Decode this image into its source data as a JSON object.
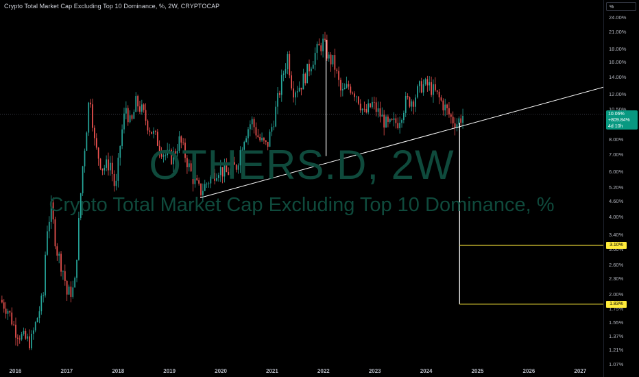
{
  "header": {
    "title": "Crypto Total Market Cap Excluding Top 10 Dominance, %, 2W, CRYPTOCAP"
  },
  "watermark": {
    "symbol": "OTHERS.D, 2W",
    "description": "Crypto Total Market Cap Excluding Top 10 Dominance, %"
  },
  "price_scale": {
    "mode_label": "%",
    "badge": {
      "value": "10.06%",
      "change": "+809.84%",
      "countdown": "4d 10h"
    },
    "target_labels": [
      {
        "label": "3.10%",
        "value": 3.1
      },
      {
        "label": "1.83%",
        "value": 1.83
      }
    ]
  },
  "colors": {
    "up": "#26a69a",
    "down": "#ef5350",
    "trendline": "#ffffff",
    "projection": "#ffffff",
    "target": "#ffeb3b",
    "watermark": "#0f4a3c"
  },
  "chart_data": {
    "type": "candlestick",
    "title": "Crypto Total Market Cap Excluding Top 10 Dominance, %, 2W, CRYPTOCAP",
    "y_scale": "log",
    "ylim": [
      1.07,
      24.0
    ],
    "xlim": [
      2015.7,
      2027.45
    ],
    "y_ticks": [
      {
        "label": "24.00%",
        "value": 24.0
      },
      {
        "label": "21.00%",
        "value": 21.0
      },
      {
        "label": "18.00%",
        "value": 18.0
      },
      {
        "label": "16.00%",
        "value": 16.0
      },
      {
        "label": "14.00%",
        "value": 14.0
      },
      {
        "label": "12.00%",
        "value": 12.0
      },
      {
        "label": "10.50%",
        "value": 10.5
      },
      {
        "label": "8.00%",
        "value": 8.0
      },
      {
        "label": "7.00%",
        "value": 7.0
      },
      {
        "label": "6.00%",
        "value": 6.0
      },
      {
        "label": "5.20%",
        "value": 5.2
      },
      {
        "label": "4.60%",
        "value": 4.6
      },
      {
        "label": "4.00%",
        "value": 4.0
      },
      {
        "label": "3.40%",
        "value": 3.4
      },
      {
        "label": "3.00%",
        "value": 3.0
      },
      {
        "label": "2.60%",
        "value": 2.6
      },
      {
        "label": "2.30%",
        "value": 2.3
      },
      {
        "label": "2.00%",
        "value": 2.0
      },
      {
        "label": "1.75%",
        "value": 1.75
      },
      {
        "label": "1.55%",
        "value": 1.55
      },
      {
        "label": "1.37%",
        "value": 1.37
      },
      {
        "label": "1.21%",
        "value": 1.21
      },
      {
        "label": "1.07%",
        "value": 1.07
      }
    ],
    "x_ticks": [
      {
        "label": "2016",
        "value": 2016
      },
      {
        "label": "2017",
        "value": 2017
      },
      {
        "label": "2018",
        "value": 2018
      },
      {
        "label": "2019",
        "value": 2019
      },
      {
        "label": "2020",
        "value": 2020
      },
      {
        "label": "2021",
        "value": 2021
      },
      {
        "label": "2022",
        "value": 2022
      },
      {
        "label": "2023",
        "value": 2023
      },
      {
        "label": "2024",
        "value": 2024
      },
      {
        "label": "2025",
        "value": 2025
      },
      {
        "label": "2026",
        "value": 2026
      },
      {
        "label": "2027",
        "value": 2027
      }
    ],
    "last_value": 10.06,
    "trendline": {
      "start": [
        2019.6,
        4.75
      ],
      "end": [
        2027.45,
        12.8
      ]
    },
    "measure_lines": [
      {
        "x": 2022.05,
        "from": 6.9,
        "to": 19.6
      },
      {
        "x": 2024.65,
        "from": 9.3,
        "to": 1.83
      }
    ],
    "target_lines": [
      {
        "value": 3.1,
        "from_x": 2024.65
      },
      {
        "value": 1.83,
        "from_x": 2024.65
      }
    ],
    "series_anchors": [
      [
        2015.7,
        1.9
      ],
      [
        2015.85,
        1.75
      ],
      [
        2016.0,
        1.45
      ],
      [
        2016.15,
        1.35
      ],
      [
        2016.3,
        1.3
      ],
      [
        2016.4,
        1.55
      ],
      [
        2016.55,
        2.0
      ],
      [
        2016.6,
        3.5
      ],
      [
        2016.7,
        4.3
      ],
      [
        2016.8,
        3.0
      ],
      [
        2016.95,
        2.4
      ],
      [
        2017.0,
        2.0
      ],
      [
        2017.15,
        2.1
      ],
      [
        2017.3,
        6.0
      ],
      [
        2017.4,
        9.5
      ],
      [
        2017.45,
        12.5
      ],
      [
        2017.55,
        7.5
      ],
      [
        2017.7,
        6.2
      ],
      [
        2017.85,
        6.5
      ],
      [
        2017.95,
        5.0
      ],
      [
        2018.05,
        8.0
      ],
      [
        2018.15,
        10.8
      ],
      [
        2018.25,
        9.0
      ],
      [
        2018.35,
        11.2
      ],
      [
        2018.45,
        10.5
      ],
      [
        2018.6,
        9.0
      ],
      [
        2018.75,
        8.0
      ],
      [
        2018.9,
        7.0
      ],
      [
        2019.05,
        6.8
      ],
      [
        2019.2,
        8.0
      ],
      [
        2019.3,
        7.0
      ],
      [
        2019.45,
        5.7
      ],
      [
        2019.6,
        5.0
      ],
      [
        2019.75,
        5.5
      ],
      [
        2019.95,
        6.2
      ],
      [
        2020.1,
        5.9
      ],
      [
        2020.3,
        6.3
      ],
      [
        2020.45,
        8.2
      ],
      [
        2020.6,
        9.5
      ],
      [
        2020.75,
        8.0
      ],
      [
        2020.9,
        7.5
      ],
      [
        2021.05,
        10.0
      ],
      [
        2021.2,
        14.0
      ],
      [
        2021.3,
        17.0
      ],
      [
        2021.4,
        12.5
      ],
      [
        2021.55,
        13.0
      ],
      [
        2021.7,
        15.0
      ],
      [
        2021.85,
        17.5
      ],
      [
        2022.0,
        19.2
      ],
      [
        2022.1,
        16.5
      ],
      [
        2022.2,
        16.0
      ],
      [
        2022.35,
        12.0
      ],
      [
        2022.5,
        13.0
      ],
      [
        2022.65,
        12.0
      ],
      [
        2022.8,
        10.0
      ],
      [
        2022.95,
        11.0
      ],
      [
        2023.1,
        10.0
      ],
      [
        2023.25,
        9.0
      ],
      [
        2023.45,
        9.4
      ],
      [
        2023.6,
        11.2
      ],
      [
        2023.75,
        11.5
      ],
      [
        2023.9,
        13.0
      ],
      [
        2024.05,
        13.0
      ],
      [
        2024.2,
        12.0
      ],
      [
        2024.35,
        10.8
      ],
      [
        2024.5,
        9.6
      ],
      [
        2024.6,
        9.3
      ],
      [
        2024.7,
        9.9
      ],
      [
        2024.75,
        10.06
      ]
    ]
  }
}
